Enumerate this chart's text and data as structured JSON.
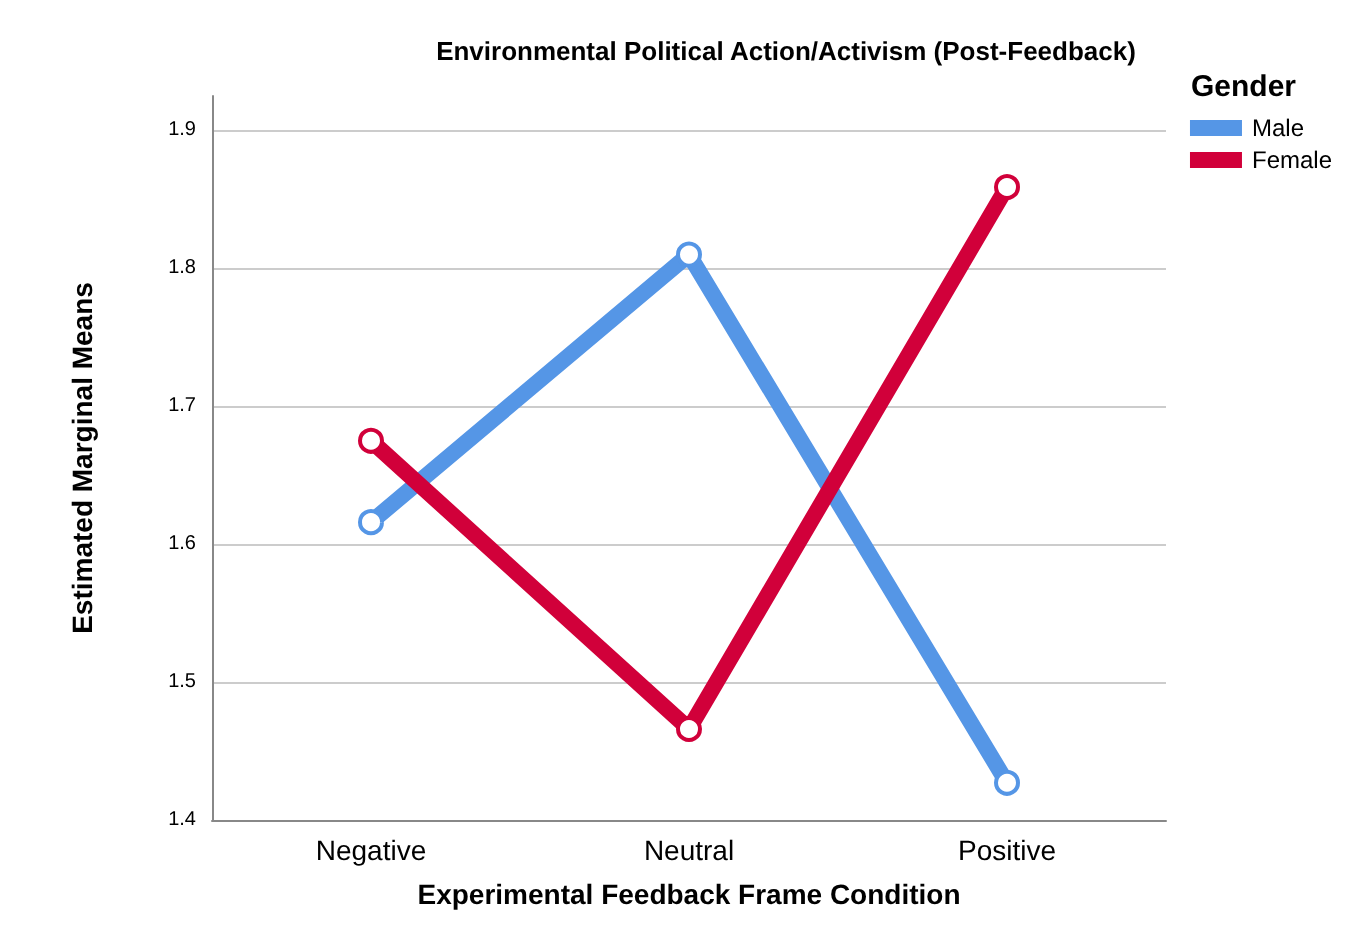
{
  "chart_data": {
    "type": "line",
    "title": "Environmental Political Action/Activism (Post-Feedback)",
    "xlabel": "Experimental Feedback Frame Condition",
    "ylabel": "Estimated Marginal Means",
    "legend_title": "Gender",
    "categories": [
      "Negative",
      "Neutral",
      "Positive"
    ],
    "series": [
      {
        "name": "Male",
        "color": "#5596e6",
        "values": [
          1.616,
          1.81,
          1.427
        ]
      },
      {
        "name": "Female",
        "color": "#d1003a",
        "values": [
          1.675,
          1.466,
          1.859
        ]
      }
    ],
    "ylim": [
      1.4,
      1.925
    ],
    "yticks": [
      1.4,
      1.5,
      1.6,
      1.7,
      1.8,
      1.9
    ],
    "grid": "y",
    "legend": "top right",
    "marker": "circle"
  }
}
